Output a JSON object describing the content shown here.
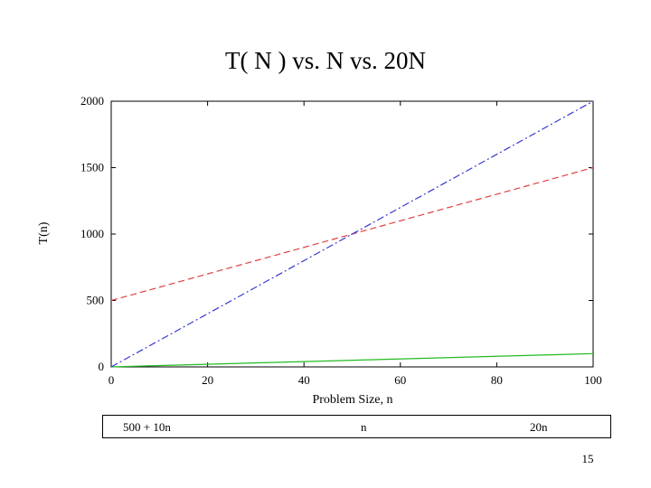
{
  "slide": {
    "title": "T( N ) vs. N vs. 20N",
    "page_number": "15"
  },
  "chart_data": {
    "type": "line",
    "title": "T( N ) vs. N vs. 20N",
    "xlabel": "Problem Size, n",
    "ylabel": "T(n)",
    "xlim": [
      0,
      100
    ],
    "ylim": [
      0,
      2000
    ],
    "x_ticks": [
      0,
      20,
      40,
      60,
      80,
      100
    ],
    "y_ticks": [
      0,
      500,
      1000,
      1500,
      2000
    ],
    "grid": false,
    "legend_placement": "below",
    "x": [
      0,
      100
    ],
    "series": [
      {
        "name": "500 + 10n",
        "values": [
          500,
          1500
        ],
        "color": "#e04040",
        "dash": "dashed"
      },
      {
        "name": "n",
        "values": [
          0,
          100
        ],
        "color": "#22bb22",
        "dash": "solid"
      },
      {
        "name": "20n",
        "values": [
          0,
          2000
        ],
        "color": "#3a3ad0",
        "dash": "dashdot"
      }
    ]
  }
}
